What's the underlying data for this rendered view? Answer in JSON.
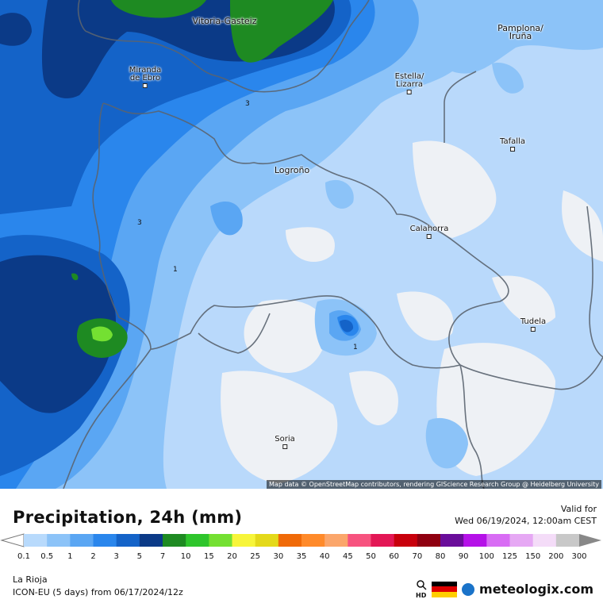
{
  "map": {
    "attribution": "Map data © OpenStreetMap contributors, rendering GIScience Research Group @ Heidelberg University",
    "cities": [
      {
        "id": "vitoria",
        "name": "Vitoria-Gasteiz"
      },
      {
        "id": "pamplona",
        "name": "Pamplona/\nIruña"
      },
      {
        "id": "miranda",
        "name": "Miranda\nde Ebro"
      },
      {
        "id": "estella",
        "name": "Estella/\nLizarra"
      },
      {
        "id": "tafalla",
        "name": "Tafalla"
      },
      {
        "id": "logrono",
        "name": "Logroño"
      },
      {
        "id": "calahorra",
        "name": "Calahorra"
      },
      {
        "id": "tudela",
        "name": "Tudela"
      },
      {
        "id": "soria",
        "name": "Soria"
      }
    ],
    "contour_labels": [
      "3",
      "3",
      "1",
      "1"
    ]
  },
  "footer": {
    "title": "Precipitation, 24h (mm)",
    "valid_label": "Valid for",
    "valid_time": "Wed 06/19/2024, 12:00am CEST",
    "region": "La Rioja",
    "model": "ICON-EU (5 days) from 06/17/2024/12z",
    "hd_label": "HD",
    "brand": "meteologix.com"
  },
  "legend": {
    "ticks": [
      "0.1",
      "0.5",
      "1",
      "2",
      "3",
      "5",
      "7",
      "10",
      "15",
      "20",
      "25",
      "30",
      "35",
      "40",
      "45",
      "50",
      "60",
      "70",
      "80",
      "90",
      "100",
      "125",
      "150",
      "200",
      "300"
    ],
    "colors": [
      "#b8dafc",
      "#8cc3f8",
      "#5aa6f3",
      "#2a86ec",
      "#1463c8",
      "#0b3a87",
      "#1e8a22",
      "#2ec52c",
      "#74e032",
      "#f7f53a",
      "#e4d91a",
      "#f06a08",
      "#ff8a2a",
      "#fba66b",
      "#f7537f",
      "#e31755",
      "#c8000c",
      "#8f0010",
      "#6a0d9a",
      "#b511e8",
      "#d86cf4",
      "#e6a8f4",
      "#f4dcf8",
      "#c8c8c8"
    ]
  }
}
